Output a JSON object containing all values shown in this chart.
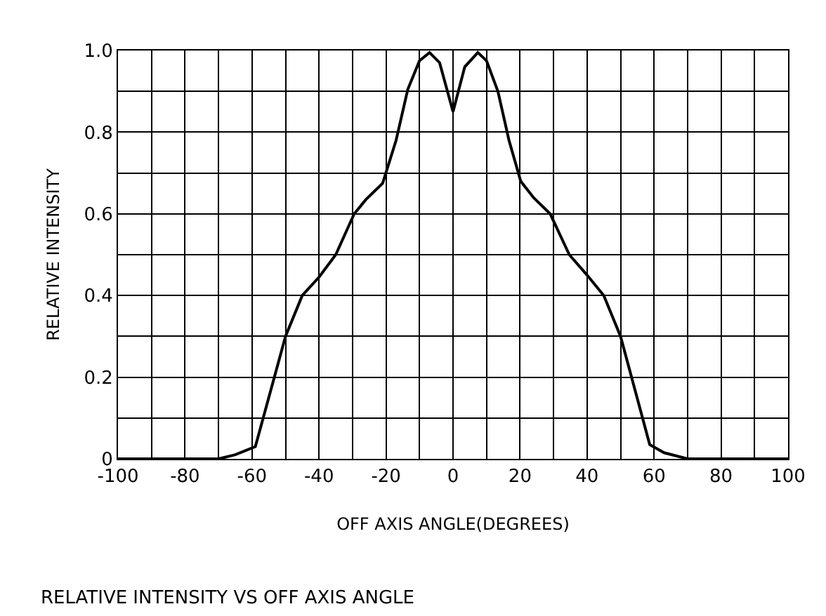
{
  "chart_data": {
    "type": "line",
    "title": "RELATIVE INTENSITY VS OFF AXIS ANGLE",
    "xlabel": "OFF AXIS ANGLE(DEGREES)",
    "ylabel": "RELATIVE INTENSITY",
    "x": [
      -100,
      -70,
      -65,
      -59,
      -50,
      -45,
      -40,
      -35,
      -29.5,
      -26,
      -21,
      -17,
      -13.5,
      -10,
      -7,
      -4,
      0,
      3.5,
      7.4,
      10,
      13.4,
      16.7,
      20.2,
      24,
      29,
      34.7,
      40,
      45,
      50,
      58.7,
      63,
      70,
      100
    ],
    "series": [
      {
        "color": "#000000",
        "values": [
          0,
          0,
          0.01,
          0.03,
          0.3,
          0.4,
          0.445,
          0.5,
          0.6,
          0.635,
          0.675,
          0.78,
          0.905,
          0.975,
          0.995,
          0.97,
          0.85,
          0.96,
          0.995,
          0.975,
          0.9,
          0.78,
          0.68,
          0.64,
          0.6,
          0.5,
          0.45,
          0.4,
          0.3,
          0.035,
          0.015,
          0,
          0
        ]
      }
    ],
    "xlim": [
      -100,
      100
    ],
    "ylim": [
      0,
      1.0
    ],
    "xticks": [
      -100,
      {
        "value": -90,
        "label": null
      },
      -80,
      {
        "value": -70,
        "label": null
      },
      -60,
      {
        "value": -50,
        "label": null
      },
      -40,
      {
        "value": -30,
        "label": null
      },
      -20,
      {
        "value": -10,
        "label": null
      },
      0,
      {
        "value": 10,
        "label": null
      },
      20,
      {
        "value": 30,
        "label": null
      },
      40,
      {
        "value": 50,
        "label": null
      },
      60,
      {
        "value": 70,
        "label": null
      },
      80,
      {
        "value": 90,
        "label": null
      },
      100
    ],
    "yticks": [
      0,
      {
        "value": 0.1,
        "label": null
      },
      0.2,
      {
        "value": 0.3,
        "label": null
      },
      0.4,
      {
        "value": 0.5,
        "label": null
      },
      0.6,
      {
        "value": 0.7,
        "label": null
      },
      0.8,
      {
        "value": 0.9,
        "label": null
      },
      {
        "value": 1.0,
        "label": "1.0"
      }
    ],
    "grid": true,
    "marker": "none",
    "line_style": "solid"
  }
}
